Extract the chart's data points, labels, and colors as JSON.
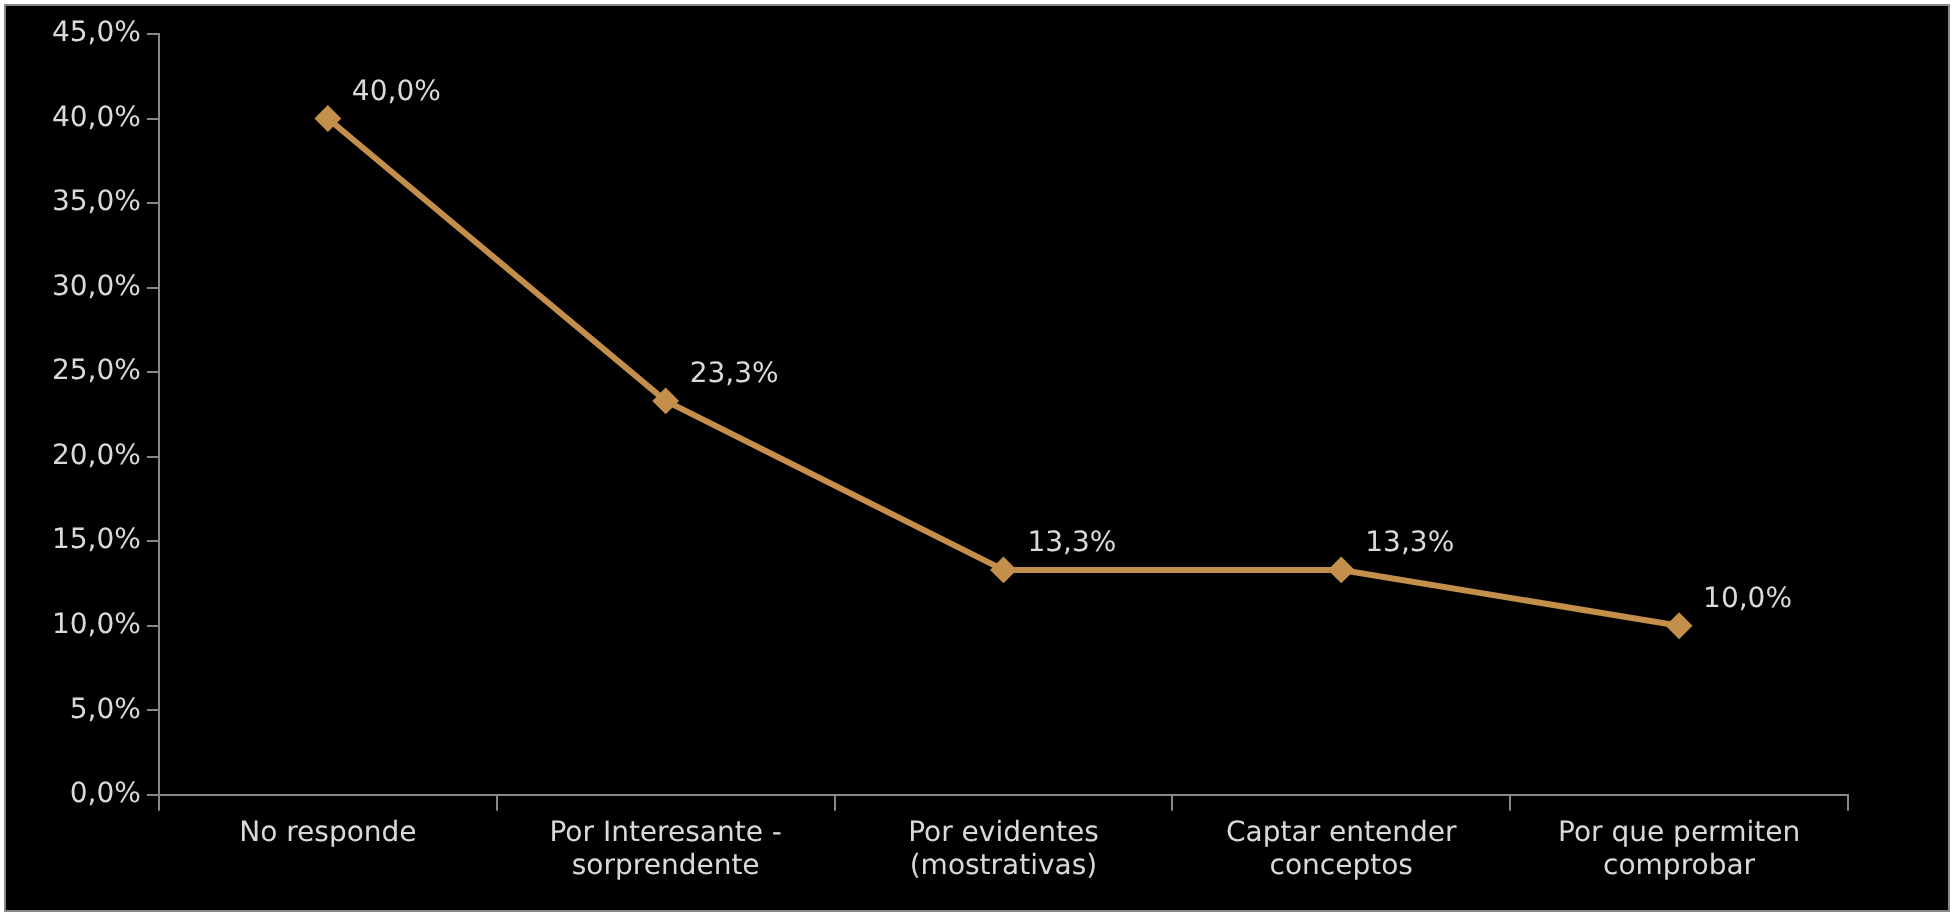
{
  "chart_data": {
    "type": "line",
    "categories": [
      "No responde",
      "Por Interesante - sorprendente",
      "Por evidentes (mostrativas)",
      "Captar entender conceptos",
      "Por que permiten comprobar"
    ],
    "series": [
      {
        "color": "#c48f4a",
        "values": [
          40.0,
          23.3,
          13.3,
          13.3,
          10.0
        ],
        "value_labels": [
          "40,0%",
          "23,3%",
          "13,3%",
          "13,3%",
          "10,0%"
        ]
      }
    ],
    "ylim": [
      0,
      45
    ],
    "yticks": [
      {
        "value": 0,
        "label": "0,0%"
      },
      {
        "value": 5,
        "label": "5,0%"
      },
      {
        "value": 10,
        "label": "10,0%"
      },
      {
        "value": 15,
        "label": "15,0%"
      },
      {
        "value": 20,
        "label": "20,0%"
      },
      {
        "value": 25,
        "label": "25,0%"
      },
      {
        "value": 30,
        "label": "30,0%"
      },
      {
        "value": 35,
        "label": "35,0%"
      },
      {
        "value": 40,
        "label": "40,0%"
      },
      {
        "value": 45,
        "label": "45,0%"
      }
    ],
    "grid": false,
    "legend": false,
    "marker": "diamond",
    "line_style": "solid"
  }
}
